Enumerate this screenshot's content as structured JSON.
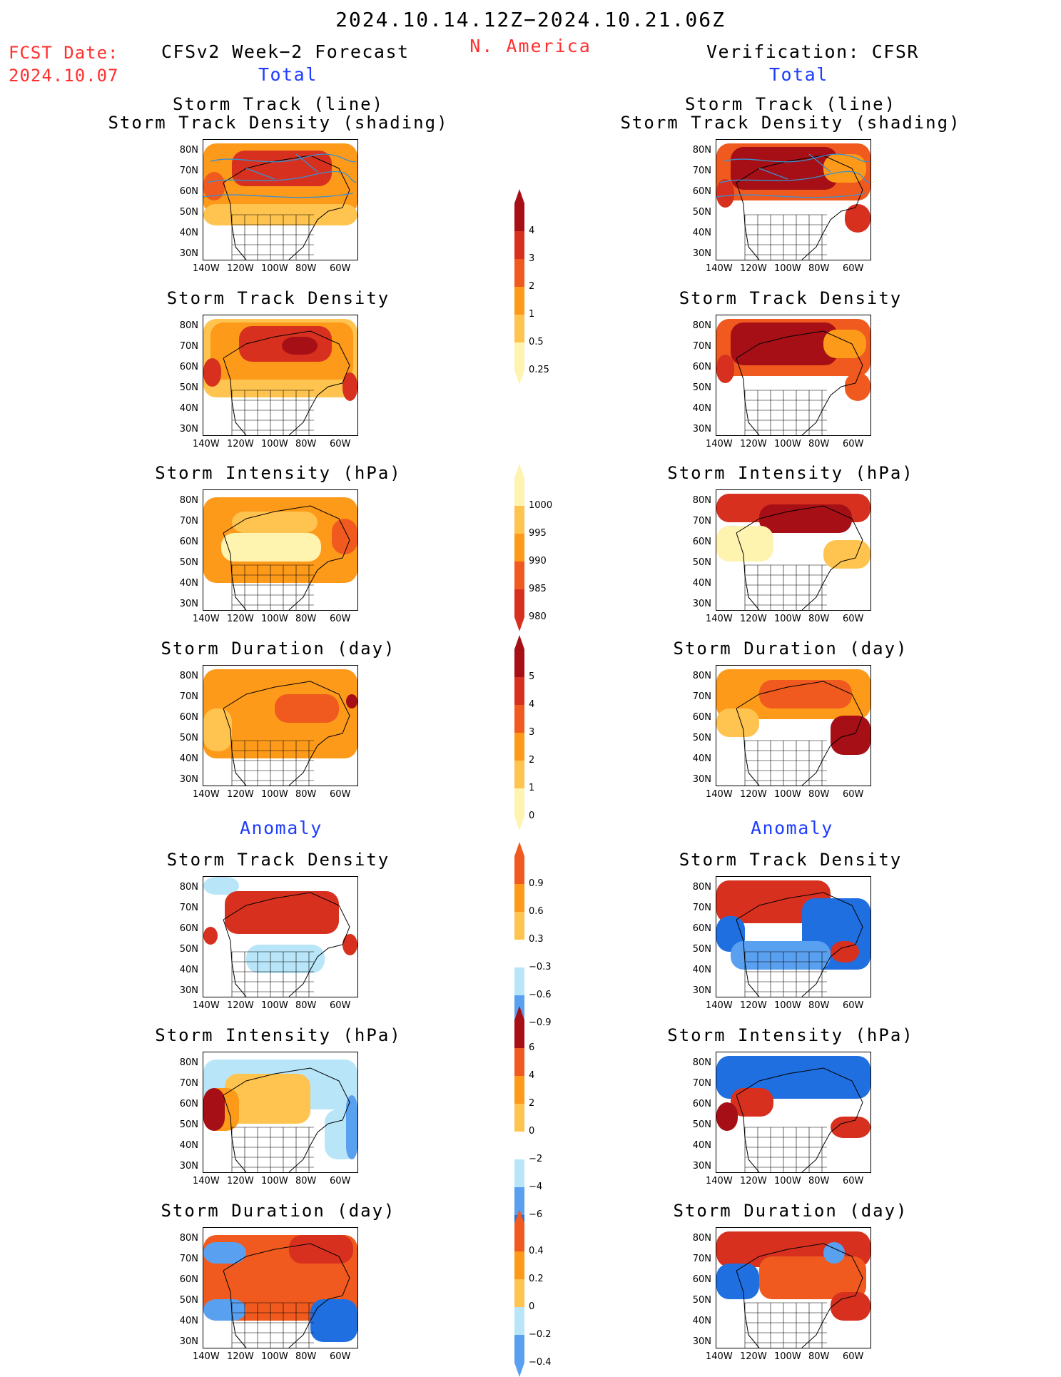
{
  "header": {
    "date_range": "2024.10.14.12Z−2024.10.21.06Z",
    "region": "N. America",
    "fcst_label": "FCST Date:",
    "fcst_date": "2024.10.07",
    "left_title": "CFSv2 Week−2 Forecast",
    "right_title": "Verification: CFSR"
  },
  "sections": {
    "total": "Total",
    "anomaly": "Anomaly"
  },
  "panel_titles": {
    "track_line": "Storm Track (line)",
    "track_density_shading": "Storm Track Density (shading)",
    "track_density": "Storm Track Density",
    "intensity": "Storm Intensity (hPa)",
    "duration": "Storm Duration (day)"
  },
  "axes": {
    "lat": [
      "80N",
      "70N",
      "60N",
      "50N",
      "40N",
      "30N"
    ],
    "lon": [
      "140W",
      "120W",
      "100W",
      "80W",
      "60W"
    ]
  },
  "colorbars": {
    "density_total": [
      "4",
      "3",
      "2",
      "1",
      "0.5",
      "0.25"
    ],
    "intensity_total": [
      "1000",
      "995",
      "990",
      "985",
      "980"
    ],
    "duration_total": [
      "5",
      "4",
      "3",
      "2",
      "1",
      "0"
    ],
    "density_anom": [
      "0.9",
      "0.6",
      "0.3",
      "−0.3",
      "−0.6",
      "−0.9"
    ],
    "intensity_anom": [
      "6",
      "4",
      "2",
      "0",
      "−2",
      "−4",
      "−6"
    ],
    "duration_anom": [
      "0.4",
      "0.2",
      "0",
      "−0.2",
      "−0.4"
    ]
  },
  "colors": {
    "dark_red": "#a50f15",
    "red": "#d7301f",
    "orange_red": "#f05a1e",
    "orange": "#fd9a1a",
    "light_orange": "#fec44f",
    "pale_yellow": "#fff3b0",
    "light_blue": "#b8e6f8",
    "mid_blue": "#5aa0f0",
    "blue": "#1f6fe0",
    "storm_line": "#3a8fd0"
  }
}
